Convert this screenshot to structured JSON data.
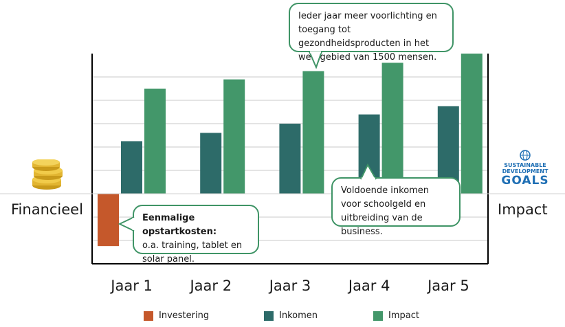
{
  "chart_data": {
    "type": "bar",
    "categories": [
      "Jaar 1",
      "Jaar 2",
      "Jaar 3",
      "Jaar 4",
      "Jaar 5"
    ],
    "series": [
      {
        "name": "Investering",
        "values": [
          -5.6,
          0,
          0,
          0,
          0
        ],
        "color": "#c5582b"
      },
      {
        "name": "Inkomen",
        "values": [
          5.7,
          6.6,
          7.6,
          8.6,
          9.5
        ],
        "color": "#2d6b69"
      },
      {
        "name": "Impact",
        "values": [
          11.4,
          12.4,
          13.3,
          14.2,
          15.2
        ],
        "color": "#43976a"
      }
    ],
    "ylim": [
      -7.5,
      15.2
    ],
    "grid": true,
    "legend_position": "bottom"
  },
  "labels": {
    "left": "Financieel",
    "right": "Impact"
  },
  "callouts": {
    "top": "Ieder jaar meer voorlichting en toegang tot gezondheidsproducten in het werkgebied van 1500  mensen.",
    "mid_right": "Voldoende inkomen voor schoolgeld en uitbreiding van de business.",
    "bottom_left_bold": "Eenmalige opstartkosten:",
    "bottom_left_text": "o.a. training, tablet en solar panel."
  },
  "sdg_logo": {
    "line1": "SUSTAINABLE",
    "line2": "DEVELOPMENT",
    "line3": "GOALS"
  },
  "icons": {
    "left": "coins-icon",
    "right": "sdg-globe-icon"
  }
}
